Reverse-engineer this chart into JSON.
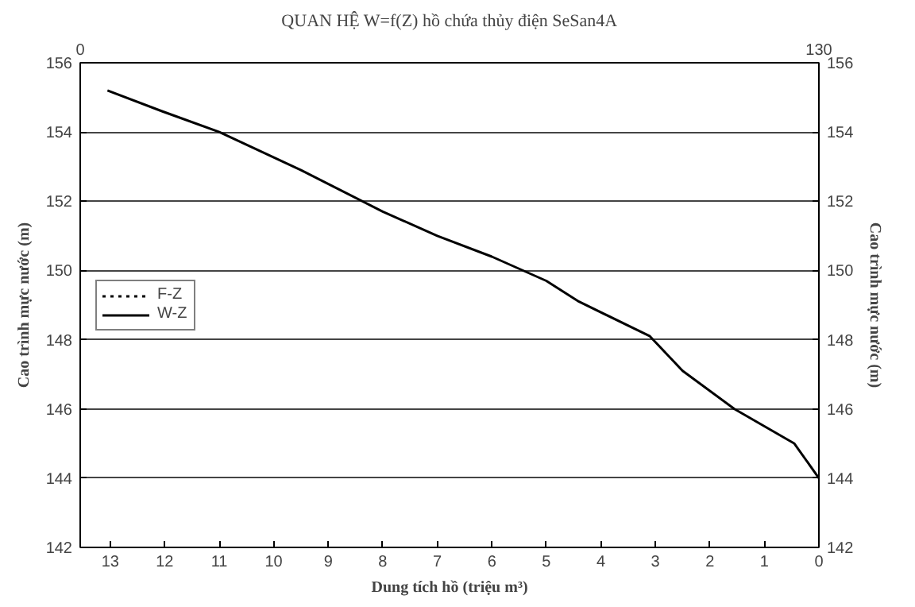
{
  "chart_data": {
    "type": "line",
    "title": "QUAN HỆ W=f(Z) hồ chứa thủy điện SeSan4A",
    "xlabel": "Dung tích hồ (triệu m³)",
    "ylabel": "Cao trình mực nước (m)",
    "y2label": "Cao trình mực nước (m)",
    "xlim": [
      13.55,
      0
    ],
    "xticks": [
      13,
      12,
      11,
      10,
      9,
      8,
      7,
      6,
      5,
      4,
      3,
      2,
      1,
      0
    ],
    "x2lim": [
      0,
      130
    ],
    "x2ticks": [
      0,
      130
    ],
    "ylim": [
      142,
      156
    ],
    "yticks": [
      142,
      144,
      146,
      148,
      150,
      152,
      154,
      156
    ],
    "y2lim": [
      142,
      156
    ],
    "y2ticks": [
      142,
      144,
      146,
      148,
      150,
      152,
      154,
      156
    ],
    "grid": "y",
    "legend": "left",
    "marker": "none",
    "series": [
      {
        "name": "F-Z",
        "color": "#000000",
        "line_style": "dotted"
      },
      {
        "name": "W-Z",
        "color": "#000000",
        "line_style": "solid",
        "x": [
          13.05,
          12.05,
          11,
          9.5,
          8,
          7,
          6,
          5,
          4.4,
          3.1,
          2.5,
          1.55,
          0.45,
          0
        ],
        "values": [
          155.2,
          154.6,
          154.0,
          152.9,
          151.7,
          151.0,
          150.4,
          149.7,
          149.1,
          148.1,
          147.1,
          146.0,
          145.0,
          144.0
        ]
      }
    ]
  }
}
